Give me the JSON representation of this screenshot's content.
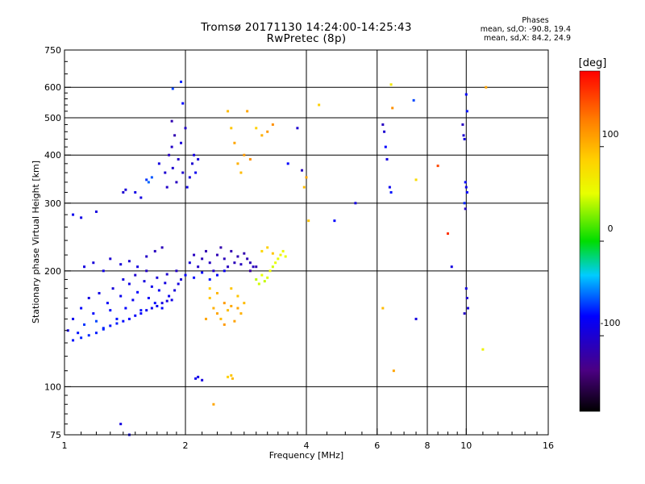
{
  "header": {
    "title": "Tromsø 20171130 14:24:00-14:25:43",
    "subtitle": "RwPretec (8p)"
  },
  "phases": {
    "heading": "Phases",
    "line_o": "mean, sd,O: -90.8, 19.4",
    "line_x": "mean, sd,X: 84.2, 24.9"
  },
  "colorbar": {
    "unit_label": "[deg]",
    "ticks": [
      {
        "label": "100",
        "value": 100
      },
      {
        "label": "0",
        "value": 0
      },
      {
        "label": "-100",
        "value": -100
      }
    ],
    "range": [
      -180,
      180
    ]
  },
  "chart_data": {
    "type": "scatter",
    "xlabel": "Frequency [MHz]",
    "ylabel": "Stationary phase Virtual Height [km]",
    "xscale": "log",
    "yscale": "log",
    "xlim": [
      1,
      16
    ],
    "ylim": [
      75,
      750
    ],
    "xticks": [
      "1",
      "2",
      "4",
      "6",
      "8",
      "10",
      "16"
    ],
    "xtick_values": [
      1,
      2,
      4,
      6,
      8,
      10,
      16
    ],
    "yticks": [
      "75",
      "100",
      "200",
      "300",
      "400",
      "500",
      "600",
      "750"
    ],
    "ytick_values": [
      75,
      100,
      200,
      300,
      400,
      500,
      600,
      750
    ],
    "x_gridlines": [
      2,
      4,
      6,
      8,
      10
    ],
    "y_gridlines": [
      100,
      200,
      300,
      400,
      500,
      600
    ],
    "points_encoding": "[frequency MHz, virtual height km, phase deg]",
    "points": [
      [
        1.02,
        140,
        -110
      ],
      [
        1.05,
        150,
        -105
      ],
      [
        1.08,
        138,
        -95
      ],
      [
        1.1,
        160,
        -100
      ],
      [
        1.12,
        145,
        -85
      ],
      [
        1.15,
        170,
        -110
      ],
      [
        1.18,
        155,
        -100
      ],
      [
        1.2,
        148,
        -80
      ],
      [
        1.22,
        175,
        -108
      ],
      [
        1.25,
        142,
        -90
      ],
      [
        1.28,
        165,
        -102
      ],
      [
        1.3,
        158,
        -98
      ],
      [
        1.32,
        180,
        -112
      ],
      [
        1.35,
        150,
        -95
      ],
      [
        1.38,
        172,
        -105
      ],
      [
        1.4,
        190,
        -110
      ],
      [
        1.42,
        160,
        -100
      ],
      [
        1.45,
        185,
        -108
      ],
      [
        1.48,
        168,
        -104
      ],
      [
        1.5,
        195,
        -115
      ],
      [
        1.52,
        176,
        -100
      ],
      [
        1.55,
        158,
        -95
      ],
      [
        1.58,
        188,
        -110
      ],
      [
        1.6,
        200,
        -118
      ],
      [
        1.62,
        170,
        -103
      ],
      [
        1.65,
        182,
        -106
      ],
      [
        1.68,
        165,
        -98
      ],
      [
        1.7,
        192,
        -112
      ],
      [
        1.72,
        178,
        -104
      ],
      [
        1.75,
        160,
        -100
      ],
      [
        1.78,
        186,
        -110
      ],
      [
        1.8,
        196,
        -115
      ],
      [
        1.82,
        172,
        -105
      ],
      [
        1.85,
        168,
        -108
      ],
      [
        1.88,
        178,
        -112
      ],
      [
        1.9,
        200,
        -118
      ],
      [
        1.92,
        185,
        -110
      ],
      [
        1.95,
        190,
        -114
      ],
      [
        1.05,
        132,
        -95
      ],
      [
        1.1,
        134,
        -90
      ],
      [
        1.15,
        136,
        -88
      ],
      [
        1.2,
        138,
        -92
      ],
      [
        1.25,
        141,
        -90
      ],
      [
        1.3,
        144,
        -95
      ],
      [
        1.35,
        146,
        -92
      ],
      [
        1.4,
        148,
        -98
      ],
      [
        1.45,
        150,
        -100
      ],
      [
        1.5,
        153,
        -102
      ],
      [
        1.55,
        155,
        -100
      ],
      [
        1.6,
        158,
        -104
      ],
      [
        1.65,
        160,
        -106
      ],
      [
        1.7,
        162,
        -105
      ],
      [
        1.75,
        165,
        -108
      ],
      [
        1.8,
        167,
        -110
      ],
      [
        1.12,
        205,
        -110
      ],
      [
        1.18,
        210,
        -112
      ],
      [
        1.25,
        200,
        -108
      ],
      [
        1.3,
        215,
        -115
      ],
      [
        1.38,
        208,
        -112
      ],
      [
        1.45,
        212,
        -115
      ],
      [
        1.52,
        205,
        -110
      ],
      [
        1.6,
        218,
        -118
      ],
      [
        1.68,
        225,
        -120
      ],
      [
        1.75,
        230,
        -122
      ],
      [
        1.05,
        280,
        -105
      ],
      [
        1.1,
        275,
        -108
      ],
      [
        1.2,
        285,
        -110
      ],
      [
        1.4,
        320,
        -115
      ],
      [
        1.42,
        325,
        -112
      ],
      [
        1.5,
        320,
        -108
      ],
      [
        1.55,
        310,
        -110
      ],
      [
        1.6,
        345,
        -85
      ],
      [
        1.62,
        340,
        -70
      ],
      [
        1.65,
        350,
        -75
      ],
      [
        1.72,
        380,
        -110
      ],
      [
        1.78,
        360,
        -115
      ],
      [
        1.8,
        330,
        -118
      ],
      [
        1.82,
        400,
        -120
      ],
      [
        1.85,
        420,
        -118
      ],
      [
        1.86,
        370,
        -115
      ],
      [
        1.88,
        450,
        -125
      ],
      [
        1.9,
        340,
        -120
      ],
      [
        1.92,
        390,
        -118
      ],
      [
        1.95,
        430,
        -112
      ],
      [
        1.97,
        360,
        -115
      ],
      [
        2.0,
        470,
        -118
      ],
      [
        1.85,
        490,
        -125
      ],
      [
        1.86,
        595,
        -80
      ],
      [
        1.95,
        620,
        -90
      ],
      [
        1.97,
        545,
        -100
      ],
      [
        2.02,
        330,
        -108
      ],
      [
        2.05,
        350,
        -112
      ],
      [
        2.08,
        380,
        -115
      ],
      [
        2.1,
        400,
        -110
      ],
      [
        2.12,
        360,
        -105
      ],
      [
        2.15,
        390,
        -112
      ],
      [
        2.05,
        210,
        -112
      ],
      [
        2.1,
        220,
        -120
      ],
      [
        2.15,
        205,
        -118
      ],
      [
        2.2,
        215,
        -122
      ],
      [
        2.25,
        225,
        -125
      ],
      [
        2.3,
        210,
        -120
      ],
      [
        2.35,
        200,
        -118
      ],
      [
        2.4,
        220,
        -124
      ],
      [
        2.45,
        230,
        -126
      ],
      [
        2.5,
        215,
        -122
      ],
      [
        2.55,
        205,
        -120
      ],
      [
        2.6,
        225,
        -125
      ],
      [
        2.65,
        210,
        -122
      ],
      [
        2.7,
        218,
        -124
      ],
      [
        2.75,
        208,
        -120
      ],
      [
        2.8,
        222,
        -126
      ],
      [
        2.85,
        215,
        -124
      ],
      [
        2.9,
        210,
        -122
      ],
      [
        2.95,
        205,
        -120
      ],
      [
        2.0,
        195,
        -100
      ],
      [
        2.1,
        192,
        -98
      ],
      [
        2.2,
        198,
        -102
      ],
      [
        2.3,
        190,
        -95
      ],
      [
        2.4,
        195,
        -100
      ],
      [
        2.5,
        200,
        -105
      ],
      [
        2.12,
        105,
        -105
      ],
      [
        2.15,
        106,
        -108
      ],
      [
        2.2,
        104,
        -110
      ],
      [
        2.55,
        106,
        90
      ],
      [
        2.6,
        107,
        95
      ],
      [
        2.62,
        105,
        100
      ],
      [
        2.3,
        170,
        95
      ],
      [
        2.35,
        160,
        105
      ],
      [
        2.4,
        155,
        110
      ],
      [
        2.45,
        150,
        100
      ],
      [
        2.5,
        165,
        115
      ],
      [
        2.55,
        158,
        98
      ],
      [
        2.6,
        162,
        108
      ],
      [
        2.65,
        148,
        112
      ],
      [
        2.7,
        172,
        95
      ],
      [
        2.75,
        155,
        105
      ],
      [
        2.8,
        165,
        100
      ],
      [
        2.25,
        150,
        110
      ],
      [
        2.3,
        180,
        90
      ],
      [
        2.4,
        175,
        102
      ],
      [
        2.5,
        145,
        115
      ],
      [
        2.6,
        180,
        95
      ],
      [
        2.7,
        160,
        110
      ],
      [
        2.6,
        470,
        95
      ],
      [
        2.65,
        430,
        110
      ],
      [
        2.7,
        380,
        105
      ],
      [
        2.75,
        360,
        100
      ],
      [
        2.8,
        400,
        115
      ],
      [
        2.9,
        390,
        120
      ],
      [
        2.55,
        520,
        100
      ],
      [
        2.85,
        520,
        110
      ],
      [
        3.0,
        470,
        90
      ],
      [
        3.1,
        450,
        105
      ],
      [
        3.2,
        460,
        115
      ],
      [
        3.3,
        480,
        120
      ],
      [
        3.0,
        190,
        40
      ],
      [
        3.05,
        185,
        45
      ],
      [
        3.1,
        195,
        50
      ],
      [
        3.15,
        188,
        42
      ],
      [
        3.2,
        192,
        48
      ],
      [
        3.25,
        200,
        55
      ],
      [
        3.3,
        205,
        45
      ],
      [
        3.35,
        210,
        50
      ],
      [
        3.4,
        215,
        52
      ],
      [
        3.45,
        220,
        58
      ],
      [
        3.5,
        225,
        55
      ],
      [
        3.55,
        218,
        50
      ],
      [
        3.1,
        225,
        85
      ],
      [
        3.2,
        230,
        90
      ],
      [
        3.3,
        222,
        95
      ],
      [
        2.9,
        200,
        -130
      ],
      [
        3.0,
        205,
        -125
      ],
      [
        3.6,
        380,
        -100
      ],
      [
        3.8,
        470,
        -115
      ],
      [
        3.9,
        365,
        -120
      ],
      [
        3.95,
        330,
        100
      ],
      [
        4.0,
        350,
        110
      ],
      [
        4.05,
        270,
        95
      ],
      [
        4.3,
        540,
        90
      ],
      [
        4.7,
        270,
        -100
      ],
      [
        5.3,
        300,
        -110
      ],
      [
        6.2,
        480,
        -120
      ],
      [
        6.25,
        460,
        -115
      ],
      [
        6.3,
        420,
        -100
      ],
      [
        6.35,
        390,
        -110
      ],
      [
        6.5,
        320,
        -95
      ],
      [
        6.45,
        330,
        -105
      ],
      [
        6.5,
        610,
        70
      ],
      [
        6.55,
        530,
        120
      ],
      [
        6.2,
        160,
        100
      ],
      [
        6.6,
        110,
        110
      ],
      [
        7.5,
        150,
        -110
      ],
      [
        7.4,
        555,
        -80
      ],
      [
        7.5,
        345,
        80
      ],
      [
        8.5,
        375,
        150
      ],
      [
        9.0,
        250,
        160
      ],
      [
        9.2,
        205,
        -110
      ],
      [
        9.8,
        480,
        -120
      ],
      [
        9.85,
        450,
        -115
      ],
      [
        9.9,
        440,
        -110
      ],
      [
        9.95,
        340,
        -100
      ],
      [
        10.0,
        330,
        -105
      ],
      [
        10.05,
        320,
        -100
      ],
      [
        9.9,
        300,
        -90
      ],
      [
        9.95,
        290,
        -120
      ],
      [
        10.0,
        180,
        -110
      ],
      [
        10.05,
        170,
        -115
      ],
      [
        10.1,
        160,
        -112
      ],
      [
        9.9,
        155,
        -118
      ],
      [
        10.0,
        575,
        -100
      ],
      [
        10.05,
        520,
        -95
      ],
      [
        11.0,
        125,
        60
      ],
      [
        11.2,
        600,
        110
      ],
      [
        1.38,
        80,
        -110
      ],
      [
        1.45,
        75,
        -105
      ],
      [
        2.35,
        90,
        110
      ]
    ]
  }
}
